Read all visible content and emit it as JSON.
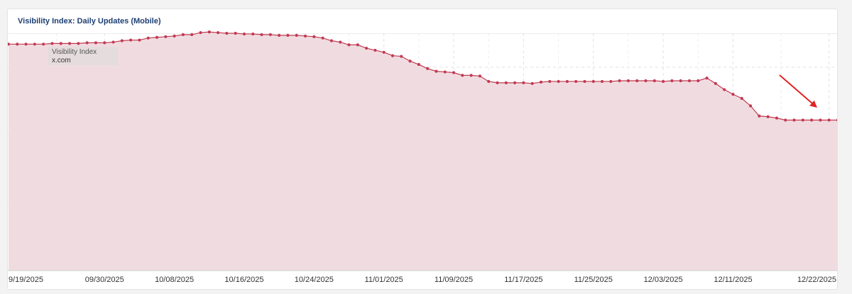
{
  "card": {
    "title": "Visibility Index: Daily Updates (Mobile)"
  },
  "legend": {
    "series_label": "Visibility Index",
    "domain": "x.com"
  },
  "colors": {
    "line": "#c23a52",
    "fill": "#f0dce0",
    "grid": "#e2e2e2",
    "arrow": "#e02424",
    "title": "#1d3f73"
  },
  "chart_data": {
    "type": "area",
    "title": "Visibility Index: Daily Updates (Mobile)",
    "xlabel": "",
    "ylabel": "",
    "ylim": [
      0,
      350
    ],
    "yticks": [
      100,
      200,
      300
    ],
    "xtick_labels": [
      "9/19/2025",
      "09/30/2025",
      "10/08/2025",
      "10/16/2025",
      "10/24/2025",
      "11/01/2025",
      "11/09/2025",
      "11/17/2025",
      "11/25/2025",
      "12/03/2025",
      "12/11/2025",
      "12/22/2025"
    ],
    "grid": true,
    "legend": "top-left",
    "series": [
      {
        "name": "Visibility Index",
        "domain": "x.com",
        "x": [
          "2025-09-19",
          "2025-09-20",
          "2025-09-21",
          "2025-09-22",
          "2025-09-23",
          "2025-09-24",
          "2025-09-25",
          "2025-09-26",
          "2025-09-27",
          "2025-09-28",
          "2025-09-29",
          "2025-09-30",
          "2025-10-01",
          "2025-10-02",
          "2025-10-03",
          "2025-10-04",
          "2025-10-05",
          "2025-10-06",
          "2025-10-07",
          "2025-10-08",
          "2025-10-09",
          "2025-10-10",
          "2025-10-11",
          "2025-10-12",
          "2025-10-13",
          "2025-10-14",
          "2025-10-15",
          "2025-10-16",
          "2025-10-17",
          "2025-10-18",
          "2025-10-19",
          "2025-10-20",
          "2025-10-21",
          "2025-10-22",
          "2025-10-23",
          "2025-10-24",
          "2025-10-25",
          "2025-10-26",
          "2025-10-27",
          "2025-10-28",
          "2025-10-29",
          "2025-10-30",
          "2025-10-31",
          "2025-11-01",
          "2025-11-02",
          "2025-11-03",
          "2025-11-04",
          "2025-11-05",
          "2025-11-06",
          "2025-11-07",
          "2025-11-08",
          "2025-11-09",
          "2025-11-10",
          "2025-11-11",
          "2025-11-12",
          "2025-11-13",
          "2025-11-14",
          "2025-11-15",
          "2025-11-16",
          "2025-11-17",
          "2025-11-18",
          "2025-11-19",
          "2025-11-20",
          "2025-11-21",
          "2025-11-22",
          "2025-11-23",
          "2025-11-24",
          "2025-11-25",
          "2025-11-26",
          "2025-11-27",
          "2025-11-28",
          "2025-11-29",
          "2025-11-30",
          "2025-12-01",
          "2025-12-02",
          "2025-12-03",
          "2025-12-04",
          "2025-12-05",
          "2025-12-06",
          "2025-12-07",
          "2025-12-08",
          "2025-12-09",
          "2025-12-10",
          "2025-12-11",
          "2025-12-12",
          "2025-12-13",
          "2025-12-14",
          "2025-12-15",
          "2025-12-16",
          "2025-12-17",
          "2025-12-18",
          "2025-12-19",
          "2025-12-20",
          "2025-12-21",
          "2025-12-22",
          "2025-12-23"
        ],
        "y": [
          334,
          334,
          334,
          334,
          334,
          335,
          335,
          335,
          335,
          336,
          336,
          336,
          337,
          339,
          340,
          340,
          343,
          344,
          345,
          346,
          348,
          348,
          351,
          352,
          351,
          350,
          350,
          349,
          349,
          348,
          348,
          347,
          347,
          347,
          346,
          345,
          343,
          339,
          337,
          333,
          333,
          328,
          325,
          322,
          317,
          316,
          309,
          304,
          298,
          294,
          293,
          292,
          288,
          288,
          287,
          279,
          277,
          277,
          277,
          277,
          276,
          278,
          279,
          279,
          279,
          279,
          279,
          279,
          279,
          279,
          280,
          280,
          280,
          280,
          280,
          279,
          280,
          280,
          280,
          280,
          284,
          276,
          267,
          260,
          254,
          243,
          228,
          227,
          225,
          222,
          222,
          222,
          222,
          222,
          222,
          222
        ]
      }
    ],
    "annotations": [
      {
        "type": "arrow",
        "label": ""
      }
    ]
  }
}
